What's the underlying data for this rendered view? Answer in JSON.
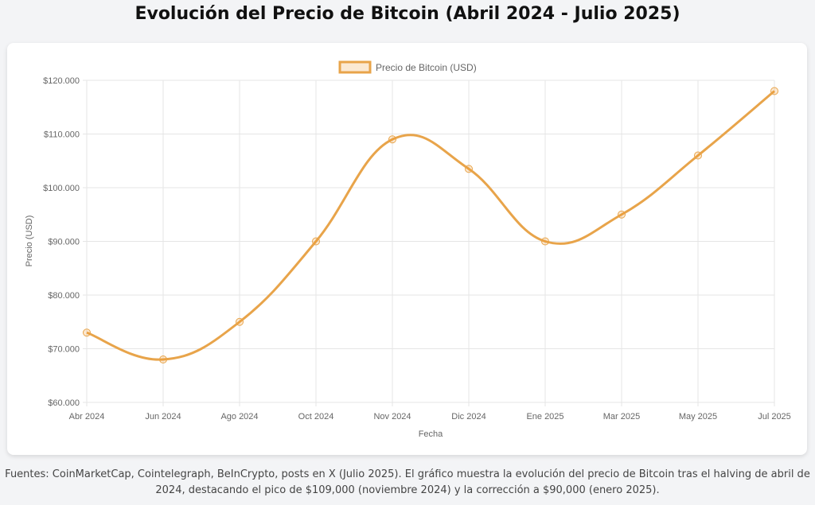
{
  "title": "Evolución del Precio de Bitcoin (Abril 2024 - Julio 2025)",
  "note": "Fuentes: CoinMarketCap, Cointelegraph, BeInCrypto, posts en X (Julio 2025). El gráfico muestra la evolución del precio de Bitcoin tras el halving de abril de 2024, destacando el pico de $109,000 (noviembre 2024) y la corrección a $90,000 (enero 2025).",
  "chart_data": {
    "type": "line",
    "categories": [
      "Abr 2024",
      "Jun 2024",
      "Ago 2024",
      "Oct 2024",
      "Nov 2024",
      "Dic 2024",
      "Ene 2025",
      "Mar 2025",
      "May 2025",
      "Jul 2025"
    ],
    "series": [
      {
        "name": "Precio de Bitcoin (USD)",
        "values": [
          73000,
          68000,
          75000,
          90000,
          109000,
          103500,
          90000,
          95000,
          106000,
          118000
        ],
        "color": "#e8a44a"
      }
    ],
    "xlabel": "Fecha",
    "ylabel": "Precio (USD)",
    "ylim": [
      60000,
      120000
    ],
    "yticks": [
      "$60.000",
      "$70.000",
      "$80.000",
      "$90.000",
      "$100.000",
      "$110.000",
      "$120.000"
    ],
    "grid": true,
    "legend": "top",
    "smooth": true
  }
}
